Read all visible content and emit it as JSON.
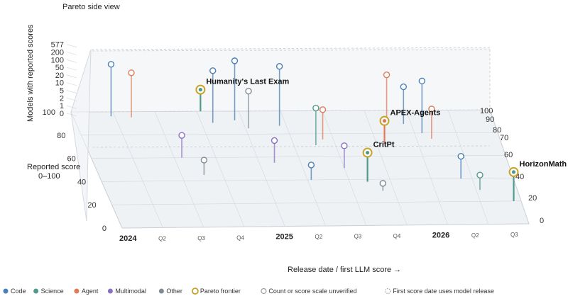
{
  "chart_data": {
    "type": "scatter",
    "title": "Pareto side view",
    "xlabel": "Release date / first LLM score →",
    "ylabel": "Reported score 0–100",
    "zlabel": "Models with reported scores",
    "x_ticks": [
      {
        "label": "2024",
        "year": true
      },
      {
        "label": "Q2",
        "year": false
      },
      {
        "label": "Q3",
        "year": false
      },
      {
        "label": "Q4",
        "year": false
      },
      {
        "label": "2025",
        "year": true
      },
      {
        "label": "Q2",
        "year": false
      },
      {
        "label": "Q3",
        "year": false
      },
      {
        "label": "Q4",
        "year": false
      },
      {
        "label": "2026",
        "year": true
      },
      {
        "label": "Q2",
        "year": false
      },
      {
        "label": "Q3",
        "year": false
      }
    ],
    "xlim": [
      2024.0,
      2026.75
    ],
    "y_ticks_left": [
      "0",
      "20",
      "40",
      "60",
      "80",
      "100"
    ],
    "y_ticks_right": [
      "0",
      "20",
      "40",
      "60",
      "70",
      "80",
      "90",
      "100"
    ],
    "z_ticks": [
      "0",
      "1",
      "2",
      "5",
      "10",
      "20",
      "50",
      "100",
      "200",
      "577"
    ],
    "ylim": [
      0,
      100
    ],
    "series_colors": {
      "Code": "#4a7fb5",
      "Science": "#4f9a8b",
      "Agent": "#e07b5a",
      "Multimodal": "#8b6fc4",
      "Other": "#7f8a96",
      "Frontier": "#c9a227"
    },
    "annotations": [
      {
        "label": "Humanity's Last Exam",
        "x": 2024.85,
        "y": 100,
        "models": 1,
        "category": "Science"
      },
      {
        "label": "APEX-Agents",
        "x": 2025.98,
        "y": 72,
        "models": 1,
        "category": "Agent"
      },
      {
        "label": "CritPt",
        "x": 2025.77,
        "y": 38,
        "models": 2,
        "category": "Science"
      },
      {
        "label": "HorizonMath",
        "x": 2026.7,
        "y": 20,
        "models": 2,
        "category": "Science"
      }
    ],
    "legend": [
      {
        "label": "Code",
        "color": "#4a7fb5",
        "kind": "dot"
      },
      {
        "label": "Science",
        "color": "#4f9a8b",
        "kind": "dot"
      },
      {
        "label": "Agent",
        "color": "#e07b5a",
        "kind": "dot"
      },
      {
        "label": "Multimodal",
        "color": "#8b6fc4",
        "kind": "dot"
      },
      {
        "label": "Other",
        "color": "#7f8a96",
        "kind": "dot"
      },
      {
        "label": "Pareto frontier",
        "color": "#c9a227",
        "kind": "ring"
      },
      {
        "label": "Count or score scale unverified",
        "color": "#9aa0a6",
        "kind": "open"
      },
      {
        "label": "First score date uses model release",
        "color": "#9aa0a6",
        "kind": "dash"
      }
    ],
    "legend_position": "bottom",
    "points": [
      {
        "x": 2024.25,
        "y": 96,
        "models": 100,
        "category": "Code"
      },
      {
        "x": 2024.38,
        "y": 95,
        "models": 50,
        "category": "Agent"
      },
      {
        "x": 2024.9,
        "y": 90,
        "models": 100,
        "category": "Code"
      },
      {
        "x": 2025.05,
        "y": 92,
        "models": 200,
        "category": "Code"
      },
      {
        "x": 2025.12,
        "y": 85,
        "models": 20,
        "category": "Other"
      },
      {
        "x": 2025.33,
        "y": 87,
        "models": 200,
        "category": "Code"
      },
      {
        "x": 2025.52,
        "y": 70,
        "models": 20,
        "category": "Science"
      },
      {
        "x": 2025.58,
        "y": 75,
        "models": 10,
        "category": "Agent"
      },
      {
        "x": 2026.05,
        "y": 92,
        "models": 50,
        "category": "Agent"
      },
      {
        "x": 2026.15,
        "y": 88,
        "models": 20,
        "category": "Code"
      },
      {
        "x": 2026.25,
        "y": 80,
        "models": 100,
        "category": "Code"
      },
      {
        "x": 2026.3,
        "y": 75,
        "models": 10,
        "category": "Agent"
      },
      {
        "x": 2024.6,
        "y": 60,
        "models": 5,
        "category": "Multimodal"
      },
      {
        "x": 2024.7,
        "y": 45,
        "models": 2,
        "category": "Other"
      },
      {
        "x": 2025.2,
        "y": 55,
        "models": 5,
        "category": "Multimodal"
      },
      {
        "x": 2025.4,
        "y": 40,
        "models": 2,
        "category": "Code"
      },
      {
        "x": 2025.65,
        "y": 50,
        "models": 5,
        "category": "Multimodal"
      },
      {
        "x": 2025.85,
        "y": 30,
        "models": 1,
        "category": "Other"
      },
      {
        "x": 2026.4,
        "y": 40,
        "models": 5,
        "category": "Code"
      },
      {
        "x": 2026.5,
        "y": 30,
        "models": 2,
        "category": "Science"
      }
    ]
  }
}
